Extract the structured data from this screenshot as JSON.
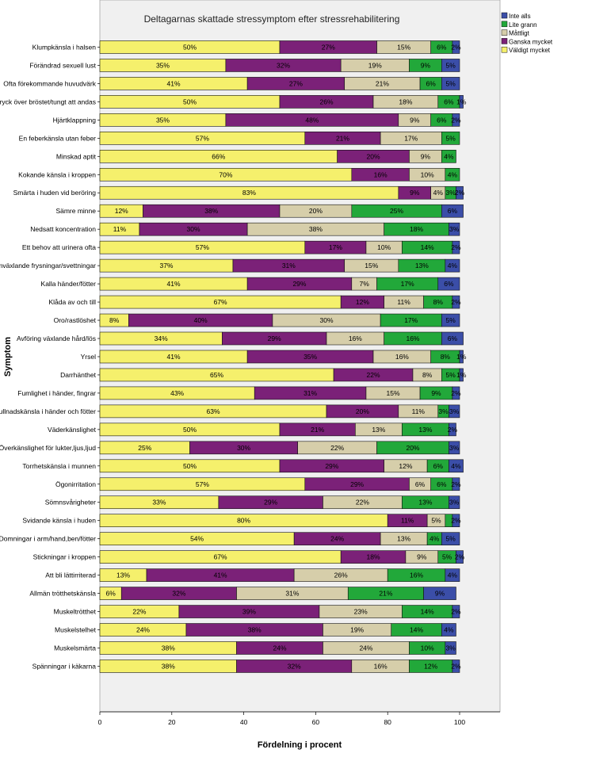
{
  "chart_data": {
    "type": "bar",
    "orientation": "horizontal",
    "stacked": true,
    "title": "Deltagarnas skattade stressymptom efter stressrehabilitering",
    "xlabel": "Fördelning i procent",
    "ylabel": "Symptom",
    "xlim": [
      0,
      100
    ],
    "xticks": [
      "0",
      "20",
      "40",
      "60",
      "80",
      "100"
    ],
    "legend_position": "top-right",
    "series": [
      {
        "name": "Inte alls",
        "color": "#3b4ea8"
      },
      {
        "name": "Lite grann",
        "color": "#22a83a"
      },
      {
        "name": "Måttligt",
        "color": "#d6ceaa"
      },
      {
        "name": "Ganska mycket",
        "color": "#7b2178"
      },
      {
        "name": "Väldigt mycket",
        "color": "#f5f06c"
      }
    ],
    "rows": [
      {
        "label": "Klumpkänsla i halsen",
        "values": [
          2,
          6,
          15,
          27,
          50
        ],
        "texts": [
          "2%",
          "6%",
          "15%",
          "27%",
          "50%"
        ]
      },
      {
        "label": "Förändrad sexuell lust",
        "values": [
          5,
          9,
          19,
          32,
          35
        ],
        "texts": [
          "5%",
          "9%",
          "19%",
          "32%",
          "35%"
        ]
      },
      {
        "label": "Ofta förekommande huvudvärk",
        "values": [
          5,
          6,
          21,
          27,
          41
        ],
        "texts": [
          "5%",
          "6%",
          "21%",
          "27%",
          "41%"
        ]
      },
      {
        "label": "Tryck över bröstet/tungt att andas",
        "values": [
          1,
          6,
          18,
          26,
          50
        ],
        "texts": [
          "1%",
          "6%",
          "18%",
          "26%",
          "50%"
        ]
      },
      {
        "label": "Hjärtklappning",
        "values": [
          2,
          6,
          9,
          48,
          35
        ],
        "texts": [
          "2%",
          "6%",
          "9%",
          "48%",
          "35%"
        ]
      },
      {
        "label": "En feberkänsla utan feber",
        "values": [
          0,
          5,
          17,
          21,
          57
        ],
        "texts": [
          "",
          "5%",
          "17%",
          "21%",
          "57%"
        ]
      },
      {
        "label": "Minskad aptit",
        "values": [
          0,
          4,
          9,
          20,
          66
        ],
        "texts": [
          "",
          "4%",
          "9%",
          "20%",
          "66%"
        ]
      },
      {
        "label": "Kokande känsla i kroppen",
        "values": [
          0,
          4,
          10,
          16,
          70
        ],
        "texts": [
          "",
          "4%",
          "10%",
          "16%",
          "70%"
        ]
      },
      {
        "label": "Smärta i huden vid beröring",
        "values": [
          2,
          3,
          4,
          9,
          83
        ],
        "texts": [
          "2%",
          "3%",
          "4%",
          "9%",
          "83%"
        ]
      },
      {
        "label": "Sämre minne",
        "values": [
          6,
          25,
          20,
          38,
          12
        ],
        "texts": [
          "6%",
          "25%",
          "20%",
          "38%",
          "12%"
        ]
      },
      {
        "label": "Nedsatt koncentration",
        "values": [
          3,
          18,
          38,
          30,
          11
        ],
        "texts": [
          "3%",
          "18%",
          "38%",
          "30%",
          "11%"
        ]
      },
      {
        "label": "Ett behov att urinera ofta",
        "values": [
          2,
          14,
          10,
          17,
          57
        ],
        "texts": [
          "2%",
          "14%",
          "10%",
          "17%",
          "57%"
        ]
      },
      {
        "label": "Omväxlande frysningar/svettningar",
        "values": [
          4,
          13,
          15,
          31,
          37
        ],
        "texts": [
          "4%",
          "13%",
          "15%",
          "31%",
          "37%"
        ]
      },
      {
        "label": "Kalla händer/fötter",
        "values": [
          6,
          17,
          7,
          29,
          41
        ],
        "texts": [
          "6%",
          "17%",
          "7%",
          "29%",
          "41%"
        ]
      },
      {
        "label": "Klåda av och till",
        "values": [
          2,
          8,
          11,
          12,
          67
        ],
        "texts": [
          "2%",
          "8%",
          "11%",
          "12%",
          "67%"
        ]
      },
      {
        "label": "Oro/rastlöshet",
        "values": [
          5,
          17,
          30,
          40,
          8
        ],
        "texts": [
          "5%",
          "17%",
          "30%",
          "40%",
          "8%"
        ]
      },
      {
        "label": "Avföring växlande hård/lös",
        "values": [
          6,
          16,
          16,
          29,
          34
        ],
        "texts": [
          "6%",
          "16%",
          "16%",
          "29%",
          "34%"
        ]
      },
      {
        "label": "Yrsel",
        "values": [
          1,
          8,
          16,
          35,
          41
        ],
        "texts": [
          "1%",
          "8%",
          "16%",
          "35%",
          "41%"
        ]
      },
      {
        "label": "Darrhänthet",
        "values": [
          1,
          5,
          8,
          22,
          65
        ],
        "texts": [
          "1%",
          "5%",
          "8%",
          "22%",
          "65%"
        ]
      },
      {
        "label": "Fumlighet i händer, fingrar",
        "values": [
          2,
          9,
          15,
          31,
          43
        ],
        "texts": [
          "2%",
          "9%",
          "15%",
          "31%",
          "43%"
        ]
      },
      {
        "label": "Svullnadskänsla i händer och fötter",
        "values": [
          3,
          3,
          11,
          20,
          63
        ],
        "texts": [
          "3%",
          "3%",
          "11%",
          "20%",
          "63%"
        ]
      },
      {
        "label": "Väderkänslighet",
        "values": [
          2,
          13,
          13,
          21,
          50
        ],
        "texts": [
          "2%",
          "13%",
          "13%",
          "21%",
          "50%"
        ]
      },
      {
        "label": "Överkänslighet för lukter,ljus,ljud",
        "values": [
          3,
          20,
          22,
          30,
          25
        ],
        "texts": [
          "3%",
          "20%",
          "22%",
          "30%",
          "25%"
        ]
      },
      {
        "label": "Torrhetskänsla i munnen",
        "values": [
          4,
          6,
          12,
          29,
          50
        ],
        "texts": [
          "4%",
          "6%",
          "12%",
          "29%",
          "50%"
        ]
      },
      {
        "label": "Ögonirritation",
        "values": [
          2,
          6,
          6,
          29,
          57
        ],
        "texts": [
          "2%",
          "6%",
          "6%",
          "29%",
          "57%"
        ]
      },
      {
        "label": "Sömnsvårigheter",
        "values": [
          3,
          13,
          22,
          29,
          33
        ],
        "texts": [
          "3%",
          "13%",
          "22%",
          "29%",
          "33%"
        ]
      },
      {
        "label": "Svidande känsla i huden",
        "values": [
          2,
          2,
          5,
          11,
          80
        ],
        "texts": [
          "2%",
          "",
          "5%",
          "11%",
          "80%"
        ]
      },
      {
        "label": "Domningar i arm/hand,ben/fötter",
        "values": [
          5,
          4,
          13,
          24,
          54
        ],
        "texts": [
          "5%",
          "4%",
          "13%",
          "24%",
          "54%"
        ]
      },
      {
        "label": "Stickningar i kroppen",
        "values": [
          2,
          5,
          9,
          18,
          67
        ],
        "texts": [
          "2%",
          "5%",
          "9%",
          "18%",
          "67%"
        ]
      },
      {
        "label": "Att bli lättirriterad",
        "values": [
          4,
          16,
          26,
          41,
          13
        ],
        "texts": [
          "4%",
          "16%",
          "26%",
          "41%",
          "13%"
        ]
      },
      {
        "label": "Allmän trötthetskänsla",
        "values": [
          9,
          21,
          31,
          32,
          6
        ],
        "texts": [
          "9%",
          "21%",
          "31%",
          "32%",
          "6%"
        ]
      },
      {
        "label": "Muskeltrötthet",
        "values": [
          2,
          14,
          23,
          39,
          22
        ],
        "texts": [
          "2%",
          "14%",
          "23%",
          "39%",
          "22%"
        ]
      },
      {
        "label": "Muskelstelhet",
        "values": [
          4,
          14,
          19,
          38,
          24
        ],
        "texts": [
          "4%",
          "14%",
          "19%",
          "38%",
          "24%"
        ]
      },
      {
        "label": "Muskelsmärta",
        "values": [
          3,
          10,
          24,
          24,
          38
        ],
        "texts": [
          "3%",
          "10%",
          "24%",
          "24%",
          "38%"
        ]
      },
      {
        "label": "Spänningar i käkarna",
        "values": [
          2,
          12,
          16,
          32,
          38
        ],
        "texts": [
          "2%",
          "12%",
          "16%",
          "32%",
          "38%"
        ]
      }
    ]
  }
}
